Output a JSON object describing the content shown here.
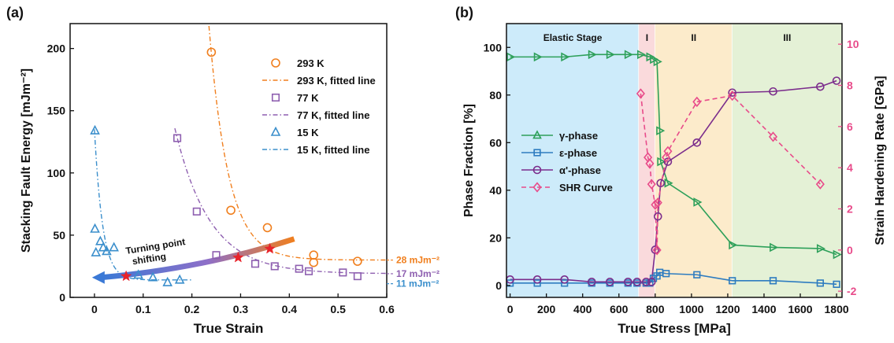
{
  "chart_data": [
    {
      "panel": "(a)",
      "type": "scatter",
      "xlabel": "True Strain",
      "ylabel": "Stacking Fault Energy [mJm⁻²]",
      "xlim": [
        -0.05,
        0.6
      ],
      "ylim": [
        0,
        220
      ],
      "xticks": [
        0,
        0.1,
        0.2,
        0.3,
        0.4,
        0.5,
        0.6
      ],
      "xtick_labels": [
        "0",
        "0.1",
        "0.2",
        "0.3",
        "0.4",
        "0.5",
        "0.6"
      ],
      "yticks": [
        0,
        50,
        100,
        150,
        200
      ],
      "ytick_labels": [
        "0",
        "50",
        "100",
        "150",
        "200"
      ],
      "legend_position": "top-right",
      "series": [
        {
          "name": "293 K",
          "marker": "circle",
          "color": "#F07F1E",
          "points": [
            [
              0.24,
              197
            ],
            [
              0.28,
              70
            ],
            [
              0.355,
              56
            ],
            [
              0.45,
              34
            ],
            [
              0.45,
              28
            ],
            [
              0.54,
              29
            ]
          ]
        },
        {
          "name": "293 K, fitted line",
          "style": "dash-dot",
          "color": "#F07F1E",
          "asymptote": 30,
          "A": 166,
          "x0": 0.24,
          "k": 25,
          "x_range": [
            0.235,
            0.6
          ]
        },
        {
          "name": "77 K",
          "marker": "square",
          "color": "#8E5FB0",
          "points": [
            [
              0.17,
              128
            ],
            [
              0.21,
              69
            ],
            [
              0.25,
              34
            ],
            [
              0.33,
              27
            ],
            [
              0.37,
              25
            ],
            [
              0.42,
              23
            ],
            [
              0.44,
              21
            ],
            [
              0.51,
              20
            ],
            [
              0.54,
              17
            ]
          ]
        },
        {
          "name": "77 K, fitted line",
          "style": "dash-dot",
          "color": "#8E5FB0",
          "asymptote": 19,
          "A": 109,
          "x0": 0.17,
          "k": 14,
          "x_range": [
            0.165,
            0.6
          ]
        },
        {
          "name": "15 K",
          "marker": "triangle",
          "color": "#3B8FCC",
          "points": [
            [
              0.001,
              134
            ],
            [
              0.001,
              55
            ],
            [
              0.003,
              36
            ],
            [
              0.012,
              45
            ],
            [
              0.018,
              40
            ],
            [
              0.025,
              37
            ],
            [
              0.04,
              40
            ],
            [
              0.09,
              18
            ],
            [
              0.12,
              16
            ],
            [
              0.15,
              12
            ],
            [
              0.175,
              14
            ]
          ]
        },
        {
          "name": "15 K, fitted line",
          "style": "dash-dot",
          "color": "#3B8FCC",
          "asymptote": 14,
          "A": 121,
          "x0": 0.0,
          "k": 60,
          "x_range": [
            0.0,
            0.2
          ]
        }
      ],
      "turning_points": [
        [
          0.065,
          17
        ],
        [
          0.295,
          32
        ],
        [
          0.36,
          39
        ]
      ],
      "annotations": {
        "arrow_label_line1": "Turning point",
        "arrow_label_line2": "shifting",
        "right_labels": [
          {
            "text": "28 mJm⁻²",
            "color": "#F07F1E",
            "y": 30
          },
          {
            "text": "17 mJm⁻²",
            "color": "#8E5FB0",
            "y": 19
          },
          {
            "text": "11 mJm⁻²",
            "color": "#3B8FCC",
            "y": 11
          }
        ]
      }
    },
    {
      "panel": "(b)",
      "type": "line",
      "xlabel": "True Stress [MPa]",
      "ylabel": "Phase Fraction [%]",
      "y2label": "Strain Hardening Rate [GPa]",
      "xlim": [
        -20,
        1830
      ],
      "ylim": [
        -5,
        110
      ],
      "y2lim": [
        -2.3,
        11.0
      ],
      "xticks": [
        0,
        200,
        400,
        600,
        800,
        1000,
        1200,
        1400,
        1600,
        1800
      ],
      "xtick_labels": [
        "0",
        "200",
        "400",
        "600",
        "800",
        "1000",
        "1200",
        "1400",
        "1600",
        "1800"
      ],
      "yticks": [
        0,
        20,
        40,
        60,
        80,
        100
      ],
      "ytick_labels": [
        "0",
        "20",
        "40",
        "60",
        "80",
        "100"
      ],
      "y2ticks": [
        -2,
        0,
        2,
        4,
        6,
        8,
        10
      ],
      "y2tick_labels": [
        "-2",
        "0",
        "2",
        "4",
        "6",
        "8",
        "10"
      ],
      "legend_position": "center-left",
      "stages": [
        {
          "label": "Elastic Stage",
          "from": -20,
          "to": 710,
          "color": "#CDEBFA"
        },
        {
          "label": "I",
          "from": 710,
          "to": 800,
          "color": "#FADADC"
        },
        {
          "label": "II",
          "from": 800,
          "to": 1225,
          "color": "#FCEBCB"
        },
        {
          "label": "III",
          "from": 1225,
          "to": 1830,
          "color": "#E4F1D6"
        }
      ],
      "series": [
        {
          "name": "γ-phase",
          "marker": "triangle-right",
          "color": "#2EA05A",
          "axis": "left",
          "x": [
            0,
            150,
            300,
            450,
            550,
            650,
            720,
            770,
            790,
            810,
            825,
            830,
            870,
            1030,
            1225,
            1450,
            1710,
            1800
          ],
          "y": [
            96,
            96,
            96,
            97,
            97,
            97,
            97,
            96,
            95,
            94,
            65,
            52,
            43,
            35,
            17,
            16,
            15.5,
            13
          ]
        },
        {
          "name": "ε-phase",
          "marker": "square",
          "color": "#2E7CC0",
          "axis": "left",
          "x": [
            0,
            150,
            300,
            450,
            550,
            650,
            700,
            750,
            770,
            790,
            810,
            825,
            860,
            1030,
            1225,
            1450,
            1710,
            1800
          ],
          "y": [
            1,
            1,
            1,
            1,
            1,
            1,
            1,
            1,
            1,
            3,
            4,
            5.5,
            5,
            4.5,
            2,
            2,
            1,
            0.5
          ]
        },
        {
          "name": "α'-phase",
          "marker": "circle",
          "color": "#7B2D8C",
          "axis": "left",
          "x": [
            0,
            150,
            300,
            450,
            550,
            650,
            700,
            750,
            780,
            800,
            815,
            830,
            870,
            1030,
            1225,
            1450,
            1710,
            1800
          ],
          "y": [
            2.5,
            2.5,
            2.5,
            1.5,
            1.5,
            1.5,
            1.5,
            1.5,
            1.5,
            15,
            29,
            43,
            52,
            60,
            81,
            81.5,
            83.5,
            86
          ]
        },
        {
          "name": "SHR Curve",
          "marker": "diamond",
          "color": "#E84B8A",
          "axis": "right",
          "style": "dashed",
          "x": [
            720,
            760,
            770,
            780,
            800,
            810,
            815,
            860,
            870,
            1030,
            1225,
            1450,
            1710
          ],
          "y": [
            7.6,
            4.5,
            4.2,
            3.2,
            2.2,
            0.0,
            2.3,
            4.5,
            4.8,
            7.2,
            7.5,
            5.5,
            3.2
          ]
        }
      ]
    }
  ]
}
